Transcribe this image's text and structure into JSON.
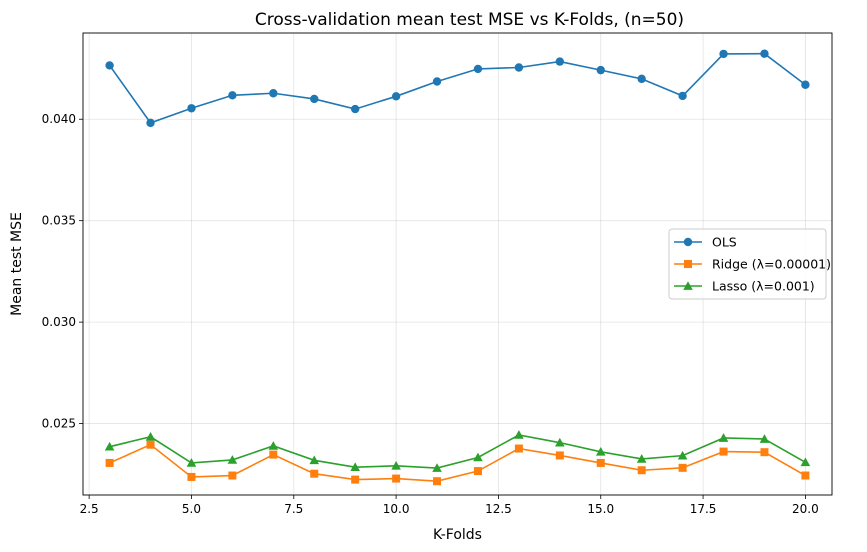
{
  "chart_data": {
    "type": "line",
    "title": "Cross-validation mean test MSE vs K-Folds, (n=50)",
    "xlabel": "K-Folds",
    "ylabel": "Mean test MSE",
    "xlim": [
      2.35,
      20.65
    ],
    "ylim": [
      0.02148,
      0.04425
    ],
    "xticks": [
      2.5,
      5.0,
      7.5,
      10.0,
      12.5,
      15.0,
      17.5,
      20.0
    ],
    "xtick_labels": [
      "2.5",
      "5.0",
      "7.5",
      "10.0",
      "12.5",
      "15.0",
      "17.5",
      "20.0"
    ],
    "yticks": [
      0.025,
      0.03,
      0.035,
      0.04
    ],
    "ytick_labels": [
      "0.025",
      "0.030",
      "0.035",
      "0.040"
    ],
    "grid": true,
    "legend_position": "center-right",
    "x": [
      3,
      4,
      5,
      6,
      7,
      8,
      9,
      10,
      11,
      12,
      13,
      14,
      15,
      16,
      17,
      18,
      19,
      20
    ],
    "series": [
      {
        "name": "OLS",
        "color": "#1f77b4",
        "marker": "circle",
        "values": [
          0.04265,
          0.03982,
          0.04054,
          0.04118,
          0.04128,
          0.041,
          0.0405,
          0.04113,
          0.04186,
          0.04248,
          0.04255,
          0.04284,
          0.04242,
          0.04199,
          0.04115,
          0.04322,
          0.04323,
          0.0417
        ]
      },
      {
        "name": "Ridge (λ=0.00001)",
        "color": "#ff7f0e",
        "marker": "square",
        "values": [
          0.02306,
          0.02396,
          0.02237,
          0.02244,
          0.02347,
          0.02253,
          0.02224,
          0.02229,
          0.02216,
          0.02266,
          0.02377,
          0.02343,
          0.02306,
          0.0227,
          0.02282,
          0.02362,
          0.02359,
          0.02244
        ]
      },
      {
        "name": "Lasso (λ=0.001)",
        "color": "#2ca02c",
        "marker": "triangle",
        "values": [
          0.02386,
          0.02435,
          0.02306,
          0.02321,
          0.0239,
          0.02319,
          0.02285,
          0.02292,
          0.02281,
          0.02333,
          0.02444,
          0.02406,
          0.02361,
          0.02326,
          0.02342,
          0.02429,
          0.02424,
          0.02309
        ]
      }
    ]
  }
}
